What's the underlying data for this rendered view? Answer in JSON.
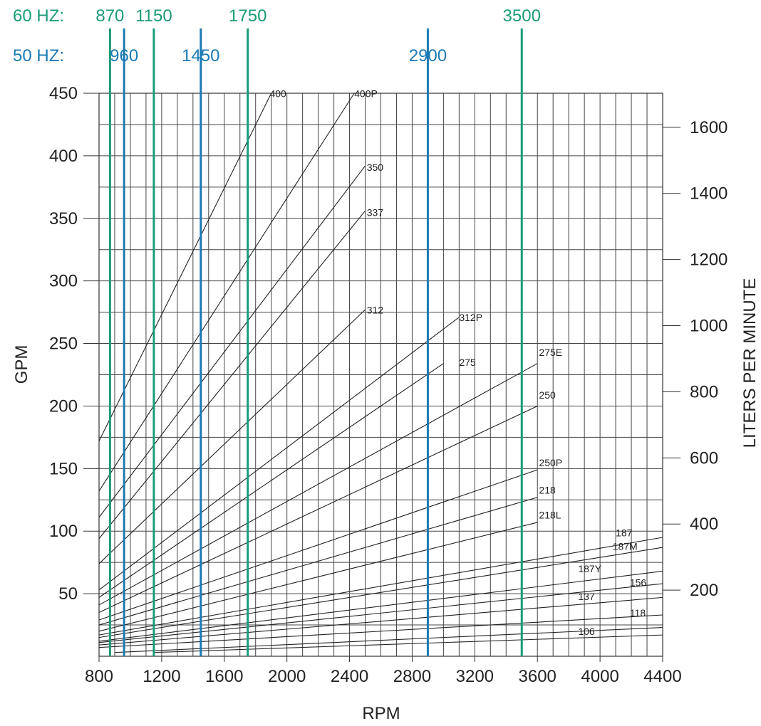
{
  "chart_data": {
    "type": "line",
    "xlabel": "RPM",
    "ylabel": "GPM",
    "y2label": "LITERS PER MINUTE",
    "xlim": [
      800,
      4400
    ],
    "ylim": [
      0,
      450
    ],
    "y2lim": [
      0,
      1703
    ],
    "xticks": [
      "800",
      "1200",
      "1600",
      "2000",
      "2400",
      "2800",
      "3200",
      "3600",
      "4000",
      "4400"
    ],
    "yticks": [
      "50",
      "100",
      "150",
      "200",
      "250",
      "300",
      "350",
      "400",
      "450"
    ],
    "y2ticks": [
      "200",
      "400",
      "600",
      "800",
      "1000",
      "1200",
      "1400",
      "1600"
    ],
    "grid": true,
    "freq_labels": {
      "hz60": "60 HZ:",
      "hz50": "50 HZ:"
    },
    "freq_lines_60hz": [
      {
        "label": "870",
        "rpm": 870
      },
      {
        "label": "1150",
        "rpm": 1150
      },
      {
        "label": "1750",
        "rpm": 1750
      },
      {
        "label": "3500",
        "rpm": 3500
      }
    ],
    "freq_lines_50hz": [
      {
        "label": "960",
        "rpm": 960
      },
      {
        "label": "1450",
        "rpm": 1450
      },
      {
        "label": "2900",
        "rpm": 2900
      }
    ],
    "colors": {
      "hz60": "#1a9b7a",
      "hz50": "#1a7ab5",
      "curve": "#222222",
      "grid": "#444444"
    },
    "series": [
      {
        "name": "400",
        "x": [
          800,
          1900
        ],
        "y": [
          172,
          450
        ]
      },
      {
        "name": "400P",
        "x": [
          800,
          2430
        ],
        "y": [
          132,
          450
        ]
      },
      {
        "name": "350",
        "x": [
          800,
          2500
        ],
        "y": [
          111,
          392
        ]
      },
      {
        "name": "337",
        "x": [
          800,
          2500
        ],
        "y": [
          94,
          356
        ]
      },
      {
        "name": "312",
        "x": [
          800,
          2500
        ],
        "y": [
          74,
          277
        ]
      },
      {
        "name": "312P",
        "x": [
          800,
          3100
        ],
        "y": [
          53,
          271
        ]
      },
      {
        "name": "275",
        "x": [
          800,
          3000
        ],
        "y": [
          47,
          234
        ]
      },
      {
        "name": "275E",
        "x": [
          800,
          3600
        ],
        "y": [
          41,
          234
        ]
      },
      {
        "name": "250",
        "x": [
          800,
          3600
        ],
        "y": [
          35,
          200
        ]
      },
      {
        "name": "250P",
        "x": [
          800,
          3600
        ],
        "y": [
          29,
          149
        ]
      },
      {
        "name": "218",
        "x": [
          800,
          3600
        ],
        "y": [
          25,
          127
        ]
      },
      {
        "name": "218L",
        "x": [
          800,
          3600
        ],
        "y": [
          20,
          107
        ]
      },
      {
        "name": "187",
        "x": [
          800,
          4400
        ],
        "y": [
          17,
          95
        ]
      },
      {
        "name": "187M",
        "x": [
          800,
          4400
        ],
        "y": [
          15,
          87
        ]
      },
      {
        "name": "187Y",
        "x": [
          800,
          4400
        ],
        "y": [
          12,
          68
        ]
      },
      {
        "name": "156",
        "x": [
          800,
          4400
        ],
        "y": [
          11,
          58
        ]
      },
      {
        "name": "137",
        "x": [
          800,
          4400
        ],
        "y": [
          9,
          47
        ]
      },
      {
        "name": "118",
        "x": [
          800,
          4400
        ],
        "y": [
          7,
          33
        ]
      },
      {
        "name": "106",
        "x": [
          900,
          4400
        ],
        "y": [
          3,
          23
        ]
      },
      {
        "name": "",
        "x": [
          1150,
          4400
        ],
        "y": [
          3,
          17
        ]
      }
    ],
    "series_labels": [
      {
        "name": "400",
        "x": 1890,
        "y": 447
      },
      {
        "name": "400P",
        "x": 2430,
        "y": 447
      },
      {
        "name": "350",
        "x": 2510,
        "y": 388
      },
      {
        "name": "337",
        "x": 2510,
        "y": 352
      },
      {
        "name": "312",
        "x": 2510,
        "y": 274
      },
      {
        "name": "312P",
        "x": 3100,
        "y": 268
      },
      {
        "name": "275",
        "x": 3100,
        "y": 232
      },
      {
        "name": "275E",
        "x": 3610,
        "y": 240
      },
      {
        "name": "250",
        "x": 3610,
        "y": 206
      },
      {
        "name": "250P",
        "x": 3610,
        "y": 152
      },
      {
        "name": "218",
        "x": 3610,
        "y": 130
      },
      {
        "name": "218L",
        "x": 3610,
        "y": 110
      },
      {
        "name": "187",
        "x": 4100,
        "y": 96
      },
      {
        "name": "187M",
        "x": 4080,
        "y": 85
      },
      {
        "name": "187Y",
        "x": 3860,
        "y": 67
      },
      {
        "name": "156",
        "x": 4190,
        "y": 56
      },
      {
        "name": "137",
        "x": 3860,
        "y": 45
      },
      {
        "name": "118",
        "x": 4190,
        "y": 32
      },
      {
        "name": "106",
        "x": 3860,
        "y": 17
      }
    ]
  }
}
